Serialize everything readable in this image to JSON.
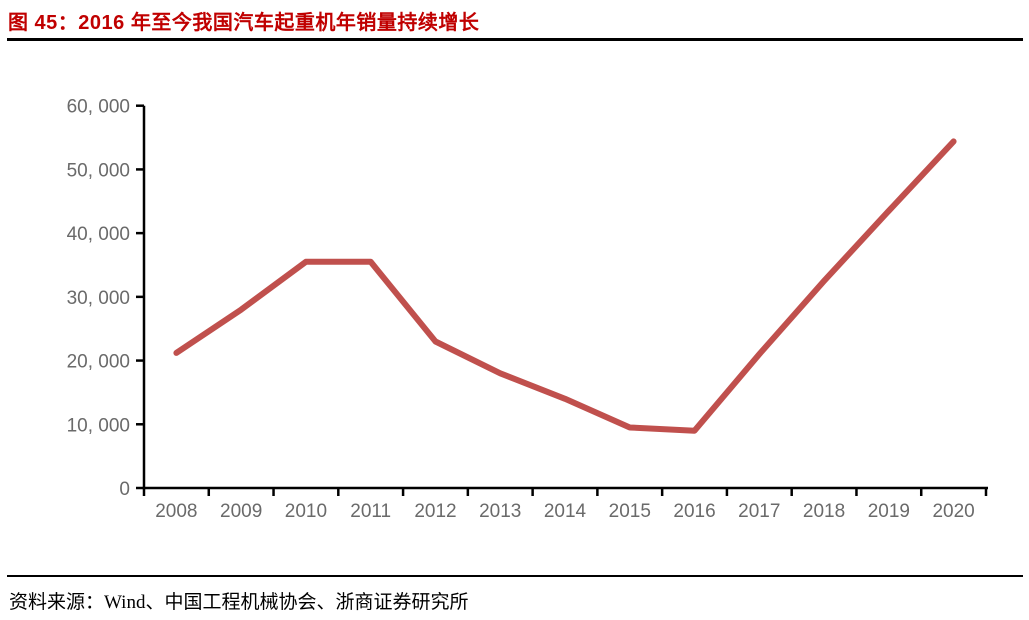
{
  "figure": {
    "title": "图 45：2016 年至今我国汽车起重机年销量持续增长",
    "source": "资料来源：Wind、中国工程机械协会、浙商证券研究所"
  },
  "colors": {
    "title_red": "#C00000",
    "line_red": "#C0504D",
    "axis_black": "#000000",
    "tick_label_gray": "#6a6a6a"
  },
  "chart_data": {
    "type": "line",
    "title": "2016 年至今我国汽车起重机年销量持续增长",
    "categories": [
      "2008",
      "2009",
      "2010",
      "2011",
      "2012",
      "2013",
      "2014",
      "2015",
      "2016",
      "2017",
      "2018",
      "2019",
      "2020"
    ],
    "values": [
      21200,
      28000,
      35500,
      35500,
      23000,
      18000,
      14000,
      9500,
      9000,
      21000,
      32500,
      43500,
      54400
    ],
    "xlabel": "",
    "ylabel": "",
    "ylim": [
      0,
      60000
    ],
    "ytick_interval": 10000,
    "ytick_labels": [
      "0",
      "10, 000",
      "20, 000",
      "30, 000",
      "40, 000",
      "50, 000",
      "60, 000"
    ],
    "grid": false,
    "legend": false
  }
}
